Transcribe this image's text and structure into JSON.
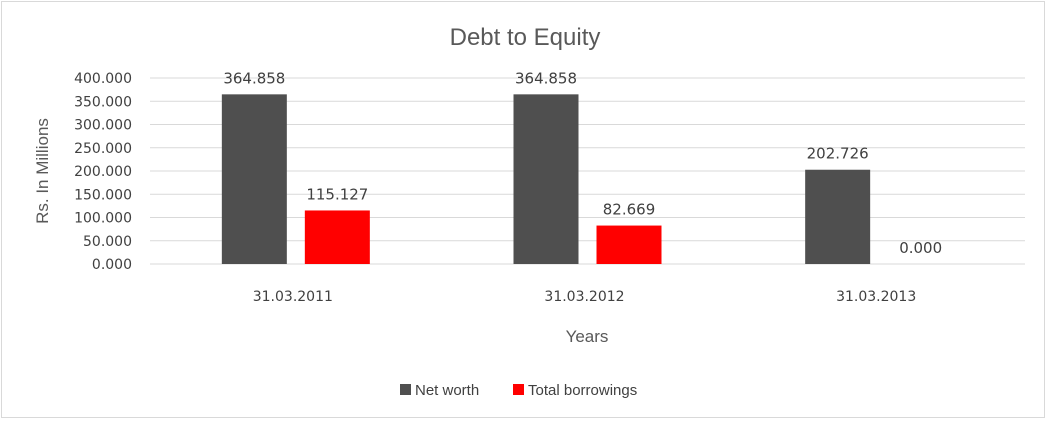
{
  "chart_data": {
    "type": "bar",
    "title": "Debt to Equity",
    "xlabel": "Years",
    "ylabel": "Rs. In Millions",
    "categories": [
      "31.03.2011",
      "31.03.2012",
      "31.03.2013"
    ],
    "series": [
      {
        "name": "Net worth",
        "values": [
          364.858,
          364.858,
          202.726
        ],
        "color": "#4f4f4f"
      },
      {
        "name": "Total borrowings",
        "values": [
          115.127,
          82.669,
          0.0
        ],
        "color": "#ff0000"
      }
    ],
    "value_labels": [
      [
        "364.858",
        "364.858",
        "202.726"
      ],
      [
        "115.127",
        "82.669",
        "0.000"
      ]
    ],
    "ylim": [
      0,
      400
    ],
    "yticks": [
      "0.000",
      "50.000",
      "100.000",
      "150.000",
      "200.000",
      "250.000",
      "300.000",
      "350.000",
      "400.000"
    ],
    "grid": true,
    "legend_position": "bottom"
  }
}
